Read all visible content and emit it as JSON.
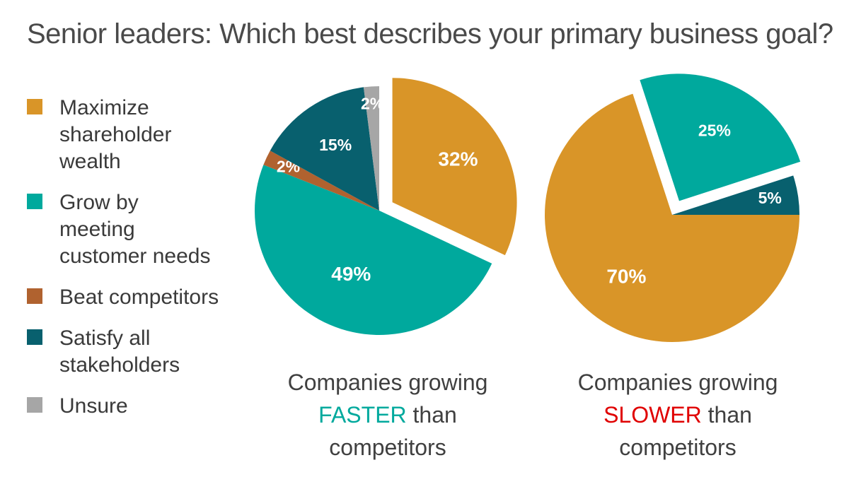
{
  "title": "Senior leaders: Which best describes your primary business goal?",
  "colors": {
    "maximize": "#d99528",
    "grow": "#00a99d",
    "beat": "#b0622f",
    "satisfy": "#08606e",
    "unsure": "#a6a6a6",
    "faster_accent": "#00a99d",
    "slower_accent": "#e00000"
  },
  "legend": [
    {
      "label": "Maximize\nshareholder\nwealth",
      "color": "#d99528"
    },
    {
      "label": "Grow by\nmeeting\ncustomer needs",
      "color": "#00a99d"
    },
    {
      "label": "Beat competitors",
      "color": "#b0622f"
    },
    {
      "label": "Satisfy all\nstakeholders",
      "color": "#08606e"
    },
    {
      "label": "Unsure",
      "color": "#a6a6a6"
    }
  ],
  "captions": {
    "faster": {
      "line1": "Companies growing",
      "accent": "FASTER",
      "rest": " than",
      "line3": "competitors"
    },
    "slower": {
      "line1": "Companies growing",
      "accent": "SLOWER",
      "rest": " than",
      "line3": "competitors"
    }
  },
  "chart_data": [
    {
      "type": "pie",
      "name": "Companies growing FASTER than competitors",
      "categories": [
        "Maximize shareholder wealth",
        "Grow by meeting customer needs",
        "Beat competitors",
        "Satisfy all stakeholders",
        "Unsure"
      ],
      "values": [
        32,
        49,
        2,
        15,
        2
      ],
      "labels": [
        "32%",
        "49%",
        "2%",
        "15%",
        "2%"
      ],
      "colors": [
        "#d99528",
        "#00a99d",
        "#b0622f",
        "#08606e",
        "#a6a6a6"
      ],
      "exploded": "Maximize shareholder wealth"
    },
    {
      "type": "pie",
      "name": "Companies growing SLOWER than competitors",
      "categories": [
        "Maximize shareholder wealth",
        "Grow by meeting customer needs",
        "Satisfy all stakeholders"
      ],
      "values": [
        70,
        25,
        5
      ],
      "labels": [
        "70%",
        "25%",
        "5%"
      ],
      "colors": [
        "#d99528",
        "#00a99d",
        "#08606e"
      ],
      "exploded": "Grow by meeting customer needs"
    }
  ]
}
